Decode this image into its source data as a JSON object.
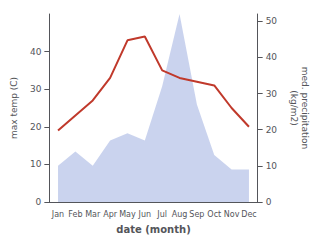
{
  "chart_data": {
    "type": "line",
    "categories": [
      "Jan",
      "Feb",
      "Mar",
      "Apr",
      "May",
      "Jun",
      "Jul",
      "Aug",
      "Sep",
      "Oct",
      "Nov",
      "Dec"
    ],
    "xlabel": "date (month)",
    "ylabel": "max temp (C)",
    "y2label": "med. precipitation\n(kg/m2)",
    "series": [
      {
        "type": "area",
        "axis": "y2",
        "color": "#b8c4e8",
        "values": [
          10,
          14,
          10,
          17,
          19,
          17,
          32,
          52,
          27,
          13,
          9,
          9
        ]
      },
      {
        "type": "line",
        "color": "#c0392b",
        "values": [
          19,
          23,
          27,
          33,
          43,
          44,
          35,
          33,
          32,
          31,
          25,
          20
        ]
      }
    ],
    "ylim": [
      0,
      50
    ],
    "yticks": [
      0,
      10,
      20,
      30,
      40
    ],
    "y2lim": [
      0,
      52
    ],
    "y2ticks": [
      0,
      10,
      20,
      30,
      40,
      50
    ],
    "grid": false
  }
}
